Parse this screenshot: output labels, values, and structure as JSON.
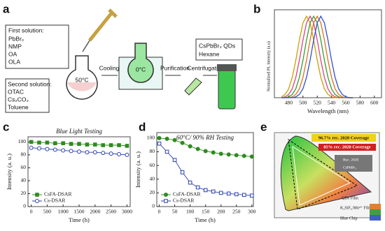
{
  "panel_labels": [
    "a",
    "b",
    "c",
    "d",
    "e"
  ],
  "scheme": {
    "first_solution": [
      "First solution:",
      "PbBr₂",
      "NMP",
      "OA",
      "OLA"
    ],
    "second_solution": [
      "Second solution:",
      "OTAC",
      "Cs₂CO₃",
      "Toluene"
    ],
    "temp_hot": "50°C",
    "temp_cold": "0°C",
    "steps": [
      "Cooling",
      "Purification",
      "Centrifugation"
    ],
    "product": [
      "CsPbBr₃ QDs",
      "Hexane"
    ]
  },
  "gamut": {
    "coverage_high": "96.7% rec. 2020 Coverage",
    "coverage_low": "85% rec. 2020 Coverage",
    "legend": [
      "Rec. 2020",
      "CsPbBr₃"
    ],
    "labels": [
      "QDs Film",
      "K₂SiF₆:Mn⁴⁺ Film",
      "Blue Chip"
    ]
  },
  "chart_data": [
    {
      "type": "line",
      "x_label": "Wavelength (nm)",
      "y_label": "Normalized PL Intensity (a.u)",
      "x": [
        470,
        475,
        480,
        485,
        490,
        495,
        500,
        505,
        510,
        515,
        520,
        525,
        530,
        535,
        540,
        545,
        550,
        555,
        560,
        565,
        570
      ],
      "xlim": [
        460,
        610
      ],
      "xticks": [
        480,
        500,
        520,
        540,
        560,
        580,
        600
      ],
      "ylim": [
        0,
        1.08
      ],
      "series": [
        {
          "color": "#c8a000",
          "values": [
            0.01,
            0.04,
            0.11,
            0.25,
            0.46,
            0.71,
            0.92,
            1,
            0.92,
            0.71,
            0.46,
            0.25,
            0.11,
            0.04,
            0.01,
            0,
            0,
            0,
            0,
            0,
            0
          ]
        },
        {
          "color": "#e0408a",
          "values": [
            0,
            0.01,
            0.04,
            0.11,
            0.25,
            0.46,
            0.71,
            0.92,
            1,
            0.92,
            0.71,
            0.46,
            0.25,
            0.11,
            0.04,
            0.01,
            0,
            0,
            0,
            0,
            0
          ]
        },
        {
          "color": "#30a030",
          "values": [
            0,
            0,
            0.01,
            0.04,
            0.11,
            0.25,
            0.46,
            0.71,
            0.92,
            1,
            0.92,
            0.71,
            0.46,
            0.25,
            0.11,
            0.04,
            0.01,
            0,
            0,
            0,
            0
          ]
        },
        {
          "color": "#e07020",
          "values": [
            0,
            0,
            0,
            0.01,
            0.04,
            0.11,
            0.25,
            0.46,
            0.71,
            0.92,
            1,
            0.92,
            0.71,
            0.46,
            0.25,
            0.11,
            0.04,
            0.01,
            0,
            0,
            0
          ]
        },
        {
          "color": "#3050d0",
          "values": [
            0,
            0,
            0,
            0,
            0.01,
            0.04,
            0.11,
            0.25,
            0.46,
            0.71,
            0.92,
            1,
            0.92,
            0.71,
            0.46,
            0.25,
            0.11,
            0.04,
            0.01,
            0,
            0
          ]
        }
      ]
    },
    {
      "type": "line",
      "title": "Blue Light Testing",
      "x_label": "Time (h)",
      "y_label": "Intensity (a. u.)",
      "x": [
        0,
        250,
        500,
        750,
        1000,
        1250,
        1500,
        1750,
        2000,
        2250,
        2500,
        2750,
        3000
      ],
      "xlim": [
        -100,
        3100
      ],
      "xticks": [
        0,
        500,
        1000,
        1500,
        2000,
        2500,
        3000
      ],
      "ylim": [
        0,
        108
      ],
      "yticks": [
        0,
        20,
        40,
        60,
        80,
        100
      ],
      "legend": "lower left",
      "series": [
        {
          "name": "CsFA-DSAR",
          "color": "#2e8b1e",
          "marker": "square",
          "hollow": false,
          "values": [
            100,
            99,
            99,
            98,
            98,
            97,
            97,
            96,
            96,
            95,
            95,
            95,
            94
          ]
        },
        {
          "name": "Cs-DSAR",
          "color": "#2a3fb0",
          "marker": "circle",
          "hollow": true,
          "values": [
            91,
            90,
            89,
            88,
            87,
            86,
            85,
            84,
            84,
            83,
            82,
            81,
            80
          ]
        }
      ]
    },
    {
      "type": "line",
      "title": "60°C/ 90% RH Testing",
      "x_label": "Time (h)",
      "y_label": "Intensity (a. u.)",
      "x": [
        0,
        25,
        50,
        75,
        100,
        125,
        150,
        175,
        200,
        225,
        250,
        275,
        300
      ],
      "xlim": [
        -8,
        305
      ],
      "xticks": [
        0,
        50,
        100,
        150,
        200,
        250,
        300
      ],
      "ylim": [
        0,
        108
      ],
      "yticks": [
        0,
        20,
        40,
        60,
        80,
        100
      ],
      "legend": "lower left",
      "series": [
        {
          "name": "CsFA-DSAR",
          "color": "#2e8b1e",
          "marker": "circle",
          "hollow": false,
          "values": [
            100,
            99,
            97,
            93,
            88,
            84,
            81,
            79,
            77,
            76,
            75,
            74,
            73
          ]
        },
        {
          "name": "Cs-DSAR",
          "color": "#2a3fb0",
          "marker": "square",
          "hollow": true,
          "values": [
            92,
            80,
            68,
            50,
            35,
            28,
            24,
            22,
            20,
            19,
            18,
            17,
            16
          ]
        }
      ]
    }
  ]
}
